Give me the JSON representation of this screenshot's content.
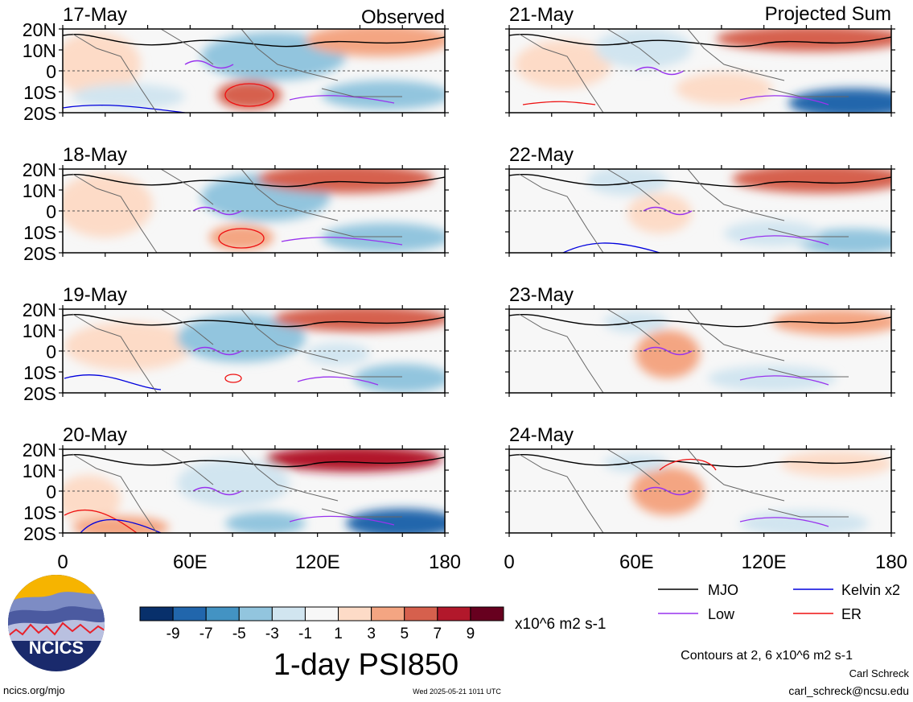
{
  "header": {
    "left_title": "Observed",
    "right_title": "Projected Sum"
  },
  "panels": [
    {
      "date": "17-May",
      "column": "observed"
    },
    {
      "date": "18-May",
      "column": "observed"
    },
    {
      "date": "19-May",
      "column": "observed"
    },
    {
      "date": "20-May",
      "column": "observed"
    },
    {
      "date": "21-May",
      "column": "projected"
    },
    {
      "date": "22-May",
      "column": "projected"
    },
    {
      "date": "23-May",
      "column": "projected"
    },
    {
      "date": "24-May",
      "column": "projected"
    }
  ],
  "axes": {
    "lat_labels": [
      "20N",
      "10N",
      "0",
      "10S",
      "20S"
    ],
    "lon_labels": [
      "0",
      "60E",
      "120E",
      "180"
    ],
    "lat_range": [
      -20,
      20
    ],
    "lon_range": [
      0,
      180
    ]
  },
  "colorbar": {
    "levels": [
      "-9",
      "-7",
      "-5",
      "-3",
      "-1",
      "1",
      "3",
      "5",
      "7",
      "9"
    ],
    "colors": [
      "#08306b",
      "#2166ac",
      "#4393c3",
      "#92c5de",
      "#d1e5f0",
      "#f7f7f7",
      "#fddbc7",
      "#f4a582",
      "#d6604d",
      "#b2182b",
      "#67001f"
    ],
    "units": "x10^6 m2 s-1"
  },
  "plot_title": "1-day PSI850",
  "legend": [
    {
      "label": "MJO",
      "color": "#000000"
    },
    {
      "label": "Kelvin x2",
      "color": "#0000dd"
    },
    {
      "label": "Low",
      "color": "#9933ee"
    },
    {
      "label": "ER",
      "color": "#ee1111"
    }
  ],
  "contours_note": "Contours at 2, 6 x10^6 m2 s-1",
  "author": "Carl Schreck",
  "email": "carl_schreck@ncsu.edu",
  "site": "ncics.org/mjo",
  "timestamp": "Wed 2025-05-21 1011 UTC",
  "logo": {
    "text": "NCICS"
  }
}
